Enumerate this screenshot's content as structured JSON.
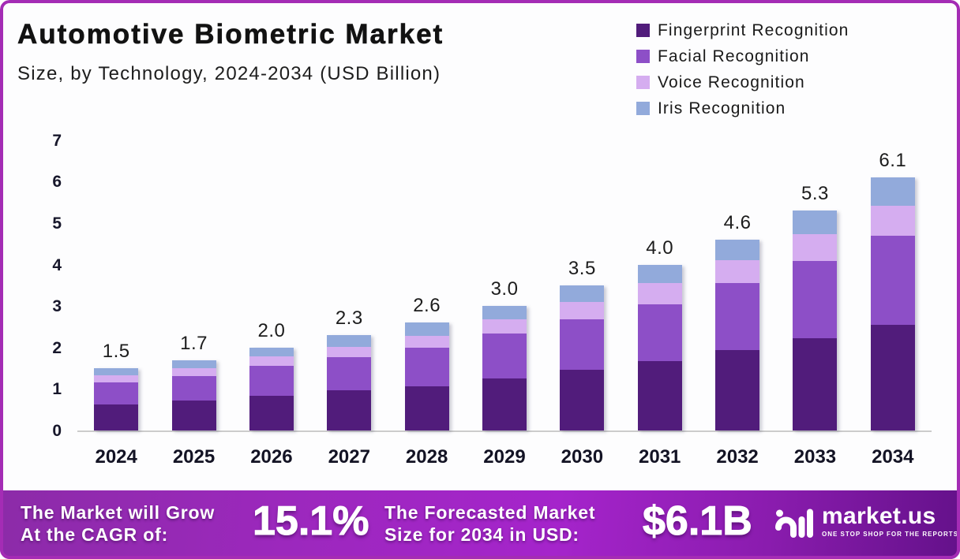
{
  "chart_data": {
    "type": "bar",
    "stacked": true,
    "title": "Automotive Biometric Market",
    "subtitle": "Size, by Technology, 2024-2034 (USD Billion)",
    "categories": [
      "2024",
      "2025",
      "2026",
      "2027",
      "2028",
      "2029",
      "2030",
      "2031",
      "2032",
      "2033",
      "2034"
    ],
    "series": [
      {
        "name": "Fingerprint Recognition",
        "color": "#511c7b",
        "values": [
          0.63,
          0.72,
          0.84,
          0.97,
          1.07,
          1.26,
          1.46,
          1.67,
          1.93,
          2.22,
          2.55
        ]
      },
      {
        "name": "Facial Recognition",
        "color": "#8d4fc7",
        "values": [
          0.52,
          0.59,
          0.72,
          0.8,
          0.92,
          1.08,
          1.22,
          1.38,
          1.62,
          1.87,
          2.15
        ]
      },
      {
        "name": "Voice Recognition",
        "color": "#d5adf0",
        "values": [
          0.18,
          0.2,
          0.22,
          0.24,
          0.29,
          0.34,
          0.42,
          0.5,
          0.55,
          0.64,
          0.72
        ]
      },
      {
        "name": "Iris Recognition",
        "color": "#92aadb",
        "values": [
          0.17,
          0.19,
          0.22,
          0.29,
          0.32,
          0.32,
          0.4,
          0.45,
          0.5,
          0.57,
          0.68
        ]
      }
    ],
    "totals": [
      "1.5",
      "1.7",
      "2.0",
      "2.3",
      "2.6",
      "3.0",
      "3.5",
      "4.0",
      "4.6",
      "5.3",
      "6.1"
    ],
    "ylim": [
      0,
      7
    ],
    "yticks": [
      "0",
      "1",
      "2",
      "3",
      "4",
      "5",
      "6",
      "7"
    ],
    "grid": false,
    "legend_position": "top-right"
  },
  "footer": {
    "cagr_label_line1": "The Market will Grow",
    "cagr_label_line2": "At the CAGR of:",
    "cagr_value": "15.1%",
    "forecast_label_line1": "The Forecasted Market",
    "forecast_label_line2": "Size for 2034 in USD:",
    "forecast_value": "$6.1B",
    "brand": {
      "name": "market.us",
      "tagline": "ONE STOP SHOP FOR THE REPORTS"
    }
  },
  "colors": {
    "page_border": "#a42cb5",
    "axis_line": "#cccccc",
    "text_dark": "#131324"
  }
}
